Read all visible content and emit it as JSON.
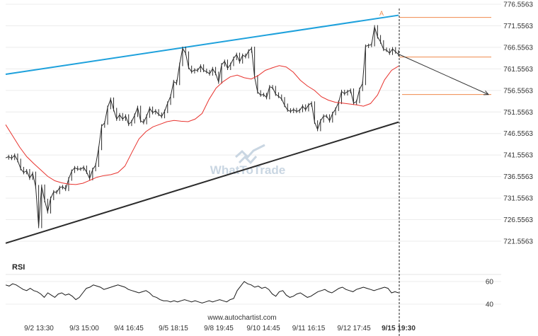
{
  "chart_data": {
    "type": "line",
    "title": "",
    "source": "www.autochartist.com",
    "watermark": "WhatToTrade",
    "pattern_point_label": "A",
    "y_axis": {
      "ticks": [
        "776.5563",
        "771.5563",
        "766.5563",
        "761.5563",
        "756.5563",
        "751.5563",
        "746.5563",
        "741.5563",
        "736.5563",
        "731.5563",
        "726.5563",
        "721.5563"
      ],
      "ylim": [
        719.0,
        777.5
      ],
      "position": "right"
    },
    "x_axis": {
      "ticks": [
        "9/2 13:30",
        "9/3 15:00",
        "9/4 16:45",
        "9/5 18:15",
        "9/8 19:45",
        "9/10 14:45",
        "9/11 16:15",
        "9/12 17:45",
        "9/15 19:30"
      ],
      "highlight": "9/15 19:30"
    },
    "colors": {
      "price": "#2a2a2a",
      "moving_average": "#e8332e",
      "upper_channel": "#1ea1dc",
      "lower_channel": "#2b2b2b",
      "levels": "#f08a4b",
      "forecast_arrow": "#333333"
    },
    "channel": {
      "upper": {
        "start": 760.3,
        "end": 774.0
      },
      "lower": {
        "start": 721.1,
        "end": 749.2
      }
    },
    "levels": [
      773.5,
      764.3,
      755.6
    ],
    "forecast": {
      "from": 764.9,
      "to": 755.6
    },
    "moving_average": [
      748.6,
      746.0,
      743.4,
      741.2,
      739.6,
      738.1,
      736.6,
      735.6,
      735.1,
      734.8,
      734.7,
      735.0,
      735.7,
      736.4,
      736.8,
      737.0,
      737.5,
      739.0,
      742.2,
      745.3,
      747.0,
      748.1,
      748.7,
      749.3,
      749.6,
      749.4,
      749.3,
      749.9,
      751.2,
      754.5,
      757.1,
      758.6,
      759.7,
      760.1,
      759.5,
      759.2,
      760.0,
      761.2,
      761.8,
      762.3,
      762.0,
      760.8,
      758.9,
      757.6,
      756.6,
      755.1,
      754.3,
      753.8,
      753.6,
      753.4,
      753.2,
      752.9,
      753.5,
      755.5,
      759.0,
      761.2,
      762.2
    ],
    "price": [
      740.9,
      741.2,
      740.8,
      741.5,
      740.3,
      738.4,
      737.5,
      737.9,
      736.2,
      737.3,
      734.2,
      725.0,
      734.3,
      731.0,
      728.4,
      731.5,
      733.0,
      732.9,
      734.0,
      734.2,
      733.6,
      736.0,
      737.8,
      738.6,
      738.3,
      738.3,
      738.7,
      737.6,
      736.1,
      738.2,
      739.2,
      743.1,
      748.3,
      749.0,
      752.6,
      754.5,
      752.1,
      749.9,
      750.9,
      749.9,
      750.6,
      748.7,
      749.3,
      750.8,
      752.6,
      749.5,
      749.1,
      750.6,
      752.4,
      751.4,
      751.8,
      751.0,
      750.5,
      751.7,
      753.6,
      755.2,
      758.6,
      758.2,
      762.6,
      766.3,
      765.2,
      761.9,
      760.9,
      761.3,
      761.2,
      762.2,
      761.2,
      760.9,
      760.4,
      761.6,
      760.5,
      758.5,
      762.5,
      763.3,
      761.7,
      762.6,
      764.0,
      764.9,
      763.2,
      764.7,
      764.4,
      765.7,
      766.3,
      759.7,
      756.2,
      755.5,
      755.6,
      754.9,
      757.4,
      757.2,
      755.7,
      755.2,
      754.6,
      753.1,
      752.0,
      751.7,
      752.1,
      751.7,
      751.9,
      752.9,
      752.1,
      753.2,
      753.6,
      749.2,
      747.5,
      749.5,
      750.6,
      750.6,
      749.5,
      751.2,
      752.2,
      753.8,
      756.3,
      755.8,
      756.3,
      756.6,
      753.6,
      754.0,
      756.8,
      758.2,
      766.8,
      767.0,
      767.2,
      771.3,
      769.0,
      767.8,
      766.1,
      765.9,
      765.2,
      766.2,
      765.5,
      764.9
    ],
    "rsi": {
      "label": "RSI",
      "ticks": [
        60,
        40
      ],
      "ylim": [
        30,
        72
      ],
      "values": [
        57,
        56,
        58,
        57,
        55,
        53,
        52,
        54,
        52,
        51,
        49,
        46,
        50,
        48,
        46,
        49,
        50,
        48,
        49,
        47,
        44,
        46,
        50,
        54,
        55,
        57,
        56,
        55,
        53,
        54,
        55,
        56,
        57,
        56,
        55,
        53,
        52,
        51,
        50,
        51,
        52,
        50,
        47,
        46,
        44,
        43,
        43,
        42,
        43,
        42,
        43,
        44,
        43,
        42,
        43,
        42,
        41,
        42,
        43,
        42,
        43,
        44,
        43,
        42,
        44,
        45,
        52,
        56,
        60,
        58,
        57,
        55,
        56,
        54,
        55,
        53,
        49,
        47,
        51,
        52,
        48,
        46,
        47,
        49,
        50,
        48,
        46,
        47,
        49,
        51,
        52,
        53,
        51,
        50,
        52,
        54,
        55,
        53,
        52,
        51,
        53,
        54,
        55,
        54,
        53,
        52,
        53,
        54,
        55,
        54,
        50,
        51,
        50
      ]
    }
  }
}
